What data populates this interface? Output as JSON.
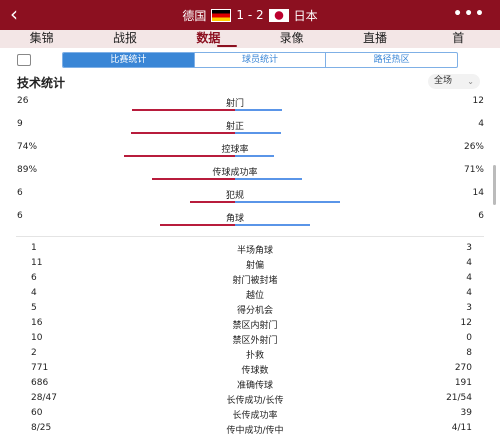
{
  "header": {
    "back_icon": "back-arrow-icon",
    "home_team": "德国",
    "score": "1 - 2",
    "away_team": "日本",
    "more_icon": "more-dots-icon"
  },
  "tabs": [
    {
      "label": "集锦"
    },
    {
      "label": "战报"
    },
    {
      "label": "数据"
    },
    {
      "label": "录像"
    },
    {
      "label": "直播"
    },
    {
      "label": "首"
    }
  ],
  "active_tab": "数据",
  "subtabs": [
    {
      "label": "比赛统计"
    },
    {
      "label": "球员统计"
    },
    {
      "label": "路径热区"
    }
  ],
  "section": {
    "title": "技术统计",
    "filter": "全场"
  },
  "colors": {
    "home": "#b81c3c",
    "away": "#5a95e8",
    "header_bg": "#8c1020",
    "accent": "#3a86d6"
  },
  "bar_stats": [
    {
      "label": "射门",
      "home": "26",
      "away": "12"
    },
    {
      "label": "射正",
      "home": "9",
      "away": "4"
    },
    {
      "label": "控球率",
      "home": "74%",
      "away": "26%"
    },
    {
      "label": "传球成功率",
      "home": "89%",
      "away": "71%"
    },
    {
      "label": "犯规",
      "home": "6",
      "away": "14"
    },
    {
      "label": "角球",
      "home": "6",
      "away": "6"
    }
  ],
  "table_stats": [
    {
      "label": "半场角球",
      "home": "1",
      "away": "3"
    },
    {
      "label": "射偏",
      "home": "11",
      "away": "4"
    },
    {
      "label": "射门被封堵",
      "home": "6",
      "away": "4"
    },
    {
      "label": "越位",
      "home": "4",
      "away": "4"
    },
    {
      "label": "得分机会",
      "home": "5",
      "away": "3"
    },
    {
      "label": "禁区内射门",
      "home": "16",
      "away": "12"
    },
    {
      "label": "禁区外射门",
      "home": "10",
      "away": "0"
    },
    {
      "label": "扑救",
      "home": "2",
      "away": "8"
    },
    {
      "label": "传球数",
      "home": "771",
      "away": "270"
    },
    {
      "label": "准确传球",
      "home": "686",
      "away": "191"
    },
    {
      "label": "长传成功/长传",
      "home": "28/47",
      "away": "21/54"
    },
    {
      "label": "长传成功率",
      "home": "60",
      "away": "39"
    },
    {
      "label": "传中成功/传中",
      "home": "8/25",
      "away": "4/11"
    }
  ]
}
